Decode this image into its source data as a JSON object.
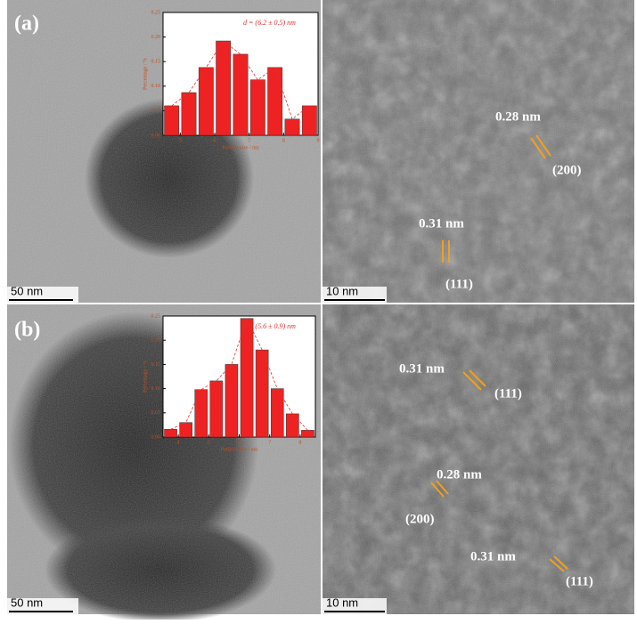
{
  "chart_data": [
    {
      "type": "histogram",
      "annotation": "d = (6.2 ± 0.5) nm",
      "ylabel": "Percentage / %",
      "xlabel": "Particle size / nm",
      "bins": [
        4.5,
        5,
        5.5,
        6,
        6.5,
        7,
        7.5,
        8,
        8.5,
        9
      ],
      "values": [
        0.06,
        0.087,
        0.138,
        0.192,
        0.165,
        0.113,
        0.138,
        0.033,
        0.06
      ],
      "color": "#ee2222",
      "xlim": [
        4.5,
        9
      ],
      "ylim": [
        0,
        0.25
      ],
      "xticks": [
        5,
        6,
        7,
        8,
        9
      ],
      "yticks": [
        {
          "value": 0,
          "label": "0.00"
        },
        0.05,
        {
          "value": 0.1,
          "label": "0.10"
        },
        0.15,
        {
          "value": 0.2,
          "label": "0.20"
        },
        0.25
      ]
    },
    {
      "type": "histogram",
      "annotation": "d = (5.6 ± 0.9) nm",
      "ylabel": "Percentage / %",
      "xlabel": "Particle size / nm",
      "bins": [
        3.5,
        4,
        4.5,
        5,
        5.5,
        6,
        6.5,
        7,
        7.5,
        8,
        8.5
      ],
      "values": [
        0.016,
        0.03,
        0.098,
        0.116,
        0.15,
        0.245,
        0.18,
        0.1,
        0.048,
        0.014
      ],
      "color": "#ee2222",
      "xlim": [
        3.5,
        8.5
      ],
      "ylim": [
        0,
        0.25
      ],
      "xticks": [
        4,
        5,
        6,
        7,
        8
      ],
      "yticks": [
        {
          "value": 0,
          "label": "0.00"
        },
        0.05,
        {
          "value": 0.1,
          "label": "0.10"
        },
        0.15,
        {
          "value": 0.2,
          "label": "0.20"
        },
        0.25
      ]
    }
  ],
  "panels": [
    {
      "label": "(a)",
      "left_scale": "50 nm",
      "right_scale": "10 nm",
      "annotations": [
        "0.28 nm",
        "(200)",
        "0.31 nm",
        "(111)"
      ]
    },
    {
      "label": "(b)",
      "left_scale": "50 nm",
      "right_scale": "10 nm",
      "annotations": [
        "0.31 nm",
        "(111)",
        "0.28 nm",
        "(200)",
        "0.31 nm",
        "(111)"
      ]
    }
  ]
}
